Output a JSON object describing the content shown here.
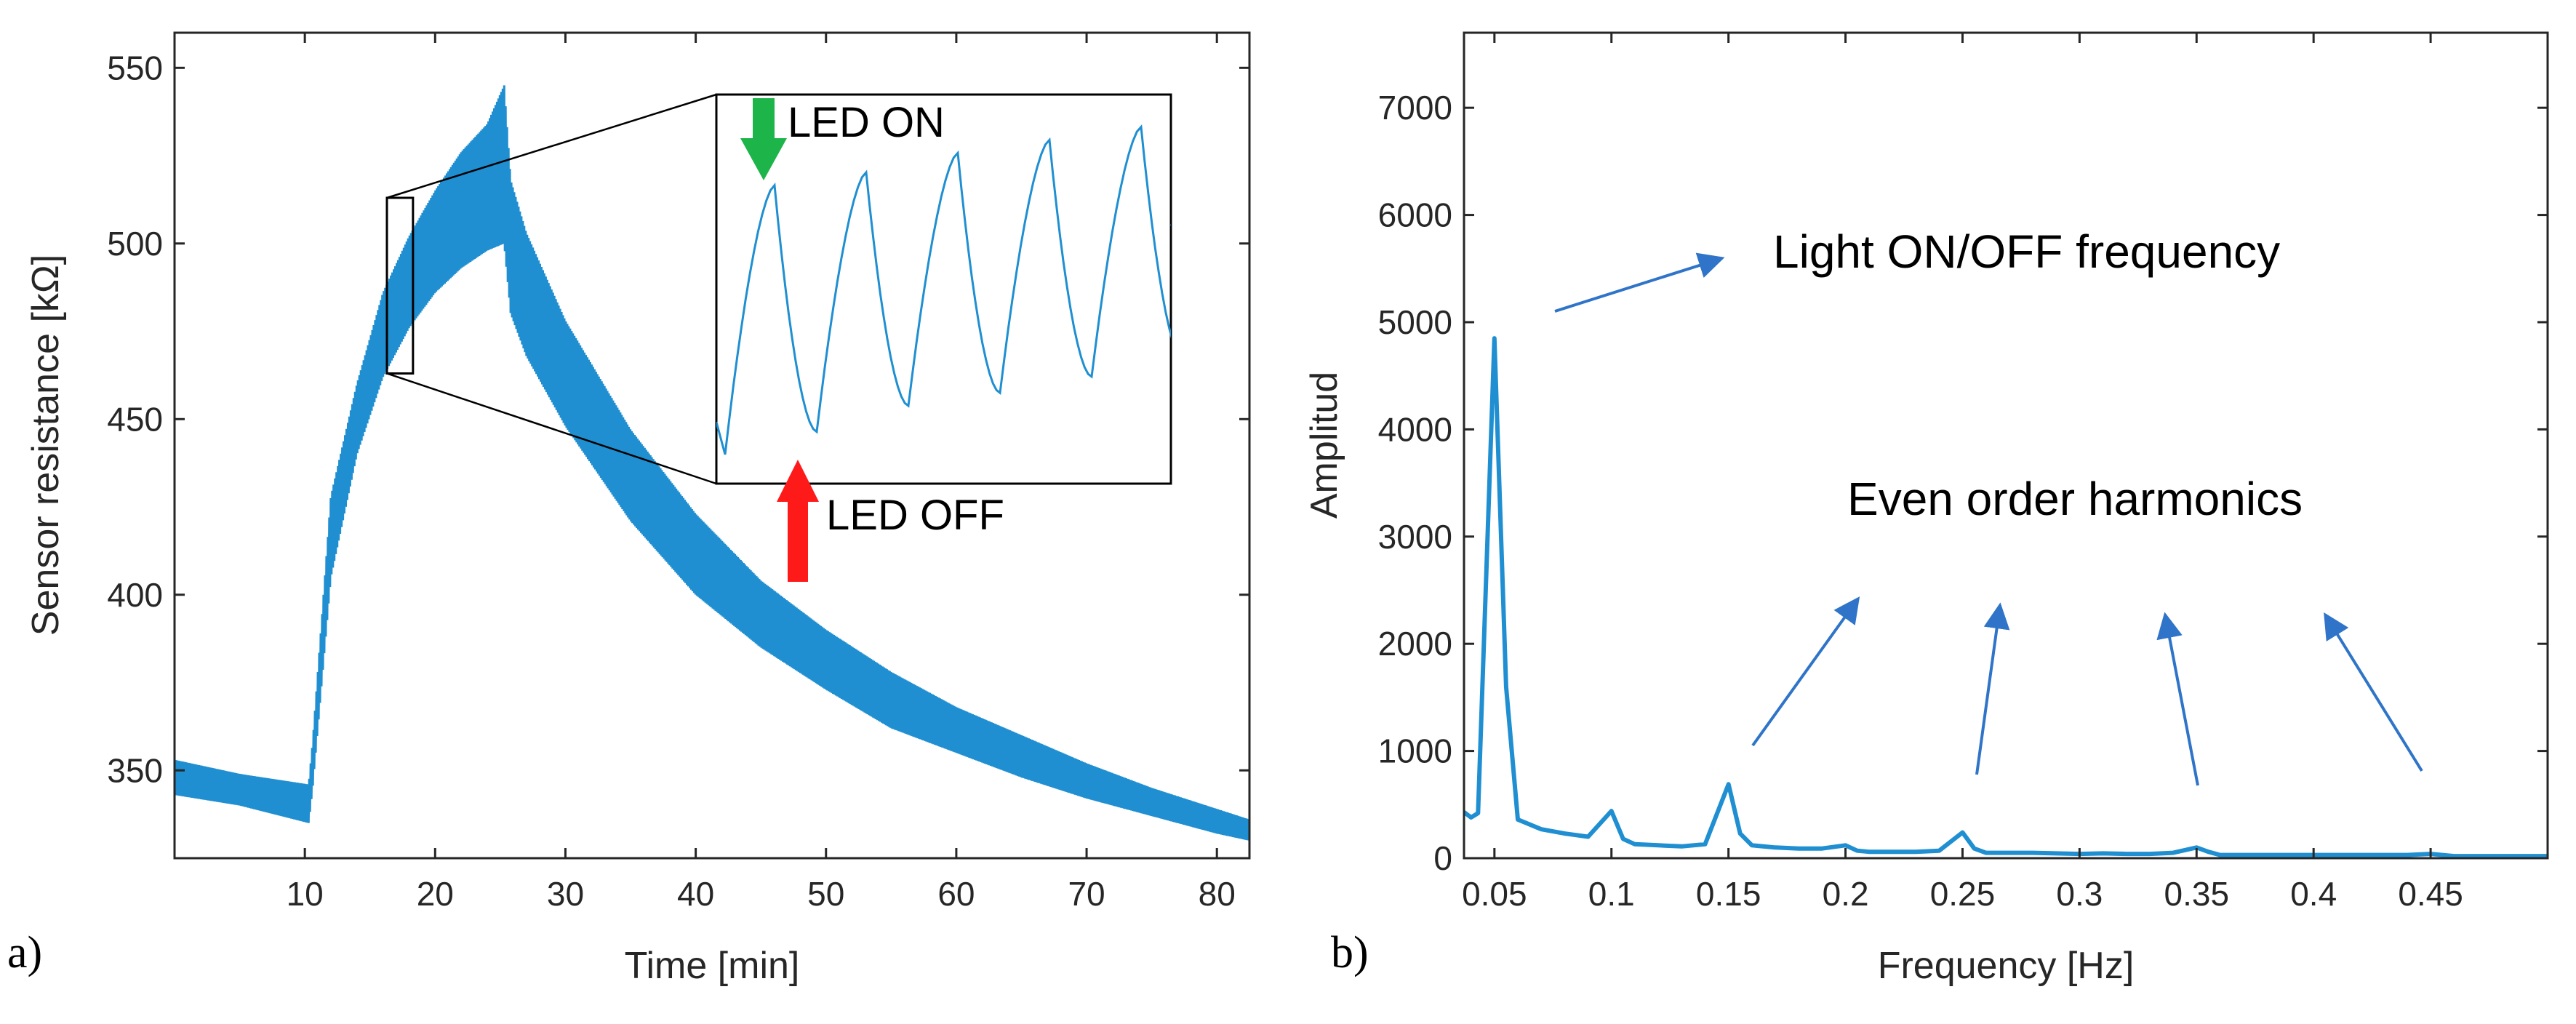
{
  "colors": {
    "series": "#1f8fd1",
    "axis": "#262626",
    "arrow_on": "#1db44a",
    "arrow_off": "#ff1a1a",
    "annotation": "#2f74c8"
  },
  "chart_data": [
    {
      "panel_label": "a)",
      "type": "line",
      "xlabel": "Time [min]",
      "ylabel": "Sensor resistance [kΩ]",
      "xlim": [
        0,
        82.5
      ],
      "ylim": [
        325,
        560
      ],
      "xticks": [
        10,
        20,
        30,
        40,
        50,
        60,
        70,
        80
      ],
      "yticks": [
        350,
        400,
        450,
        500,
        550
      ],
      "grid": false,
      "series": [
        {
          "style": "oscillating band (envelope)",
          "x": [
            0,
            5,
            10.3,
            10.6,
            12,
            14,
            16,
            18,
            20,
            22,
            24,
            25.3,
            25.8,
            27,
            30,
            35,
            40,
            45,
            50,
            55,
            60,
            65,
            70,
            75,
            80,
            82.5
          ],
          "y_min": [
            343,
            340,
            335,
            345,
            405,
            440,
            462,
            476,
            486,
            493,
            498,
            500,
            480,
            468,
            448,
            421,
            400,
            385,
            373,
            362,
            355,
            348,
            342,
            337,
            332,
            330
          ],
          "y_max": [
            353,
            349,
            346,
            358,
            428,
            460,
            486,
            502,
            515,
            526,
            534,
            545,
            518,
            503,
            478,
            447,
            423,
            404,
            390,
            378,
            368,
            360,
            352,
            345,
            339,
            336
          ]
        }
      ],
      "zoom_box": {
        "x_range": [
          16.3,
          18.3
        ],
        "y_range": [
          463,
          513
        ]
      },
      "inset": {
        "peaks": [
          517,
          521,
          527,
          531,
          535,
          539
        ],
        "troughs": [
          434,
          441,
          449,
          453,
          458,
          463
        ],
        "annotations": [
          {
            "text": "LED ON",
            "arrow": "down",
            "color": "green"
          },
          {
            "text": "LED OFF",
            "arrow": "up",
            "color": "red"
          }
        ]
      }
    },
    {
      "panel_label": "b)",
      "type": "line",
      "xlabel": "Frequency [Hz]",
      "ylabel": "Amplitud",
      "xlim": [
        0.037,
        0.5
      ],
      "ylim": [
        0,
        7700
      ],
      "xticks": [
        0.05,
        0.1,
        0.15,
        0.2,
        0.25,
        0.3,
        0.35,
        0.4,
        0.45
      ],
      "xtick_labels": [
        "0.05",
        "0.1",
        "0.15",
        "0.2",
        "0.25",
        "0.3",
        "0.35",
        "0.4",
        "0.45"
      ],
      "yticks": [
        0,
        1000,
        2000,
        3000,
        4000,
        5000,
        6000,
        7000
      ],
      "grid": false,
      "series": [
        {
          "x": [
            0.037,
            0.04,
            0.043,
            0.05,
            0.055,
            0.06,
            0.07,
            0.08,
            0.09,
            0.1,
            0.105,
            0.11,
            0.12,
            0.13,
            0.14,
            0.15,
            0.155,
            0.16,
            0.17,
            0.18,
            0.19,
            0.2,
            0.205,
            0.21,
            0.22,
            0.23,
            0.24,
            0.25,
            0.255,
            0.26,
            0.27,
            0.28,
            0.29,
            0.3,
            0.31,
            0.32,
            0.33,
            0.34,
            0.35,
            0.355,
            0.36,
            0.38,
            0.4,
            0.42,
            0.44,
            0.45,
            0.455,
            0.46,
            0.48,
            0.5
          ],
          "y": [
            430,
            380,
            420,
            4850,
            1600,
            360,
            270,
            230,
            200,
            440,
            180,
            130,
            120,
            110,
            130,
            690,
            230,
            120,
            100,
            90,
            90,
            120,
            70,
            60,
            60,
            60,
            70,
            240,
            90,
            50,
            50,
            50,
            45,
            40,
            45,
            40,
            40,
            50,
            100,
            60,
            30,
            30,
            30,
            30,
            30,
            40,
            30,
            20,
            20,
            20
          ]
        }
      ],
      "annotations": [
        {
          "text": "Light ON/OFF frequency"
        },
        {
          "text": "Even order harmonics"
        }
      ]
    }
  ]
}
